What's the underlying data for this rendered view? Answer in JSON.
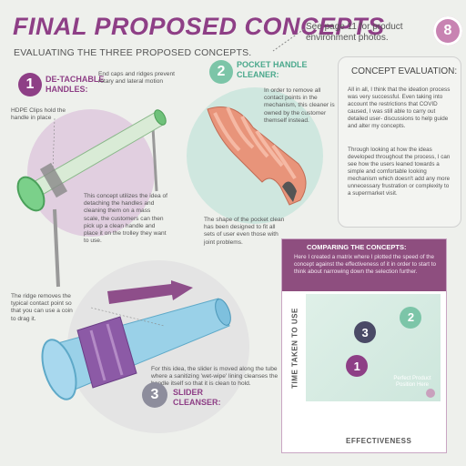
{
  "header": {
    "title": "FINAL PROPOSED CONCEPTS",
    "subtitle": "EVALUATING THE THREE PROPOSED CONCEPTS.",
    "page_ref": "See page 11 for product environment photos.",
    "page_number": "8"
  },
  "concept1": {
    "number": "1",
    "title_line1": "DE-TACHABLE",
    "title_line2": "HANDLES:",
    "note_caps": "End caps and ridges prevent rotary and lateral motion",
    "note_clips": "HDPE Clips hold the handle in place",
    "description": "This concept utilizes the idea of detaching the handles and cleaning them on a mass scale, the customers can then pick up a clean handle and place it on the trolley they want to use."
  },
  "concept2": {
    "number": "2",
    "title_line1": "POCKET HANDLE",
    "title_line2": "CLEANER:",
    "note_top": "In order to remove all contact points in the mechanism, this cleaner is owned by the customer themself instead.",
    "note_bottom": "The shape of the pocket clean has been designed to fit all sets of user even those with joint problems."
  },
  "concept3": {
    "number": "3",
    "title_line1": "SLIDER",
    "title_line2": "CLEANSER:",
    "note_ridge": "The ridge removes the typical contact point so that you can use a coin to drag it.",
    "description": "For this idea, the slider is moved along the tube where a sanitizing 'wet-wipe' lining cleanses the handle itself so that it is clean to hold."
  },
  "evaluation": {
    "heading": "CONCEPT EVALUATION:",
    "para1": "All in all, I think that the ideation process was very successful. Even taking into account the restrictions that COVID caused, I was still able to carry out detailed user- discussions to help guide and alter my concepts.",
    "para2": "Through looking at how the ideas developed throughout the process, I can see how the users leaned towards a simple and comfortable looking mechanism which doesn't add any more unnecessary frustration or complexity to a supermarket visit."
  },
  "comparison": {
    "heading": "COMPARING THE CONCEPTS:",
    "description": "Here I created a matrix where I plotted the speed of the concept against the effectiveness of it in order to start to think about narrowing down the selection further.",
    "y_label": "TIME TAKEN TO USE",
    "x_label": "EFFECTIVENESS",
    "perfect_label": "Perfect Product Position Here",
    "points": [
      {
        "label": "2",
        "effectiveness": 0.78,
        "time": 0.78
      },
      {
        "label": "3",
        "effectiveness": 0.44,
        "time": 0.64
      },
      {
        "label": "1",
        "effectiveness": 0.38,
        "time": 0.33
      }
    ]
  },
  "colors": {
    "purple": "#8e3f86",
    "teal": "#4aa88c",
    "pink_badge": "#c883b2"
  }
}
